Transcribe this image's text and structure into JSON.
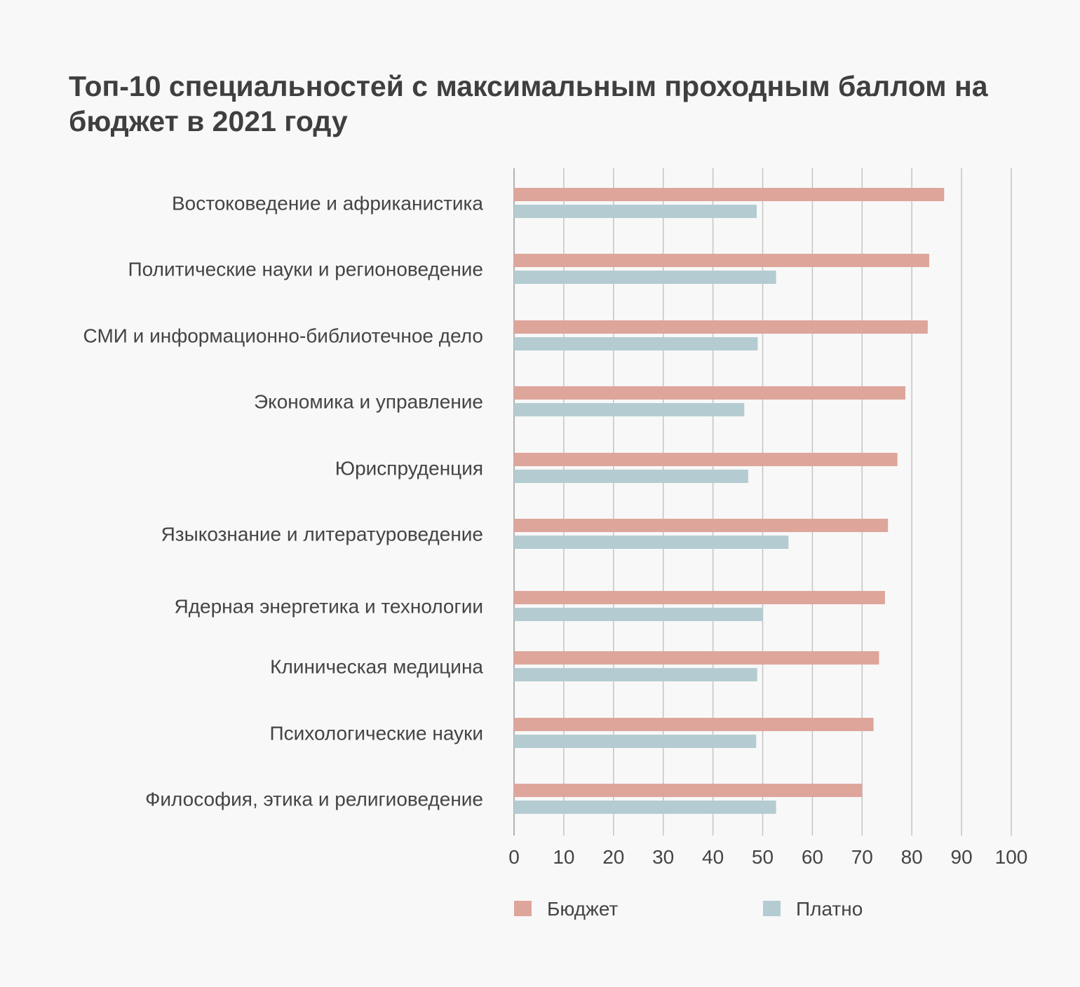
{
  "chart_data": {
    "type": "bar",
    "orientation": "horizontal",
    "title": "Топ-10 специальностей с максимальным проходным баллом на бюджет в 2021 году",
    "categories": [
      "Востоковедение и африканистика",
      "Политические науки и регионоведение",
      "СМИ и информационно-библиотечное дело",
      "Экономика и управление",
      "Юриспруденция",
      "Языкознание и литературоведение",
      "Ядерная энергетика и технологии",
      "Клиническая медицина",
      "Психологические науки",
      "Философия, этика и религиоведение"
    ],
    "series": [
      {
        "name": "Бюджет",
        "color": "#dea59b",
        "values": [
          86.5,
          83.5,
          83.2,
          78.7,
          77.1,
          75.2,
          74.6,
          73.4,
          72.3,
          70.0
        ]
      },
      {
        "name": "Платно",
        "color": "#b4ccd1",
        "values": [
          48.8,
          52.7,
          49.0,
          46.3,
          47.1,
          55.2,
          50.0,
          48.9,
          48.7,
          52.7
        ]
      }
    ],
    "xlim": [
      0,
      100
    ],
    "xticks": [
      0,
      10,
      20,
      30,
      40,
      50,
      60,
      70,
      80,
      90,
      100
    ],
    "xlabel": "",
    "ylabel": "",
    "grid": "vertical",
    "legend_position": "bottom"
  }
}
